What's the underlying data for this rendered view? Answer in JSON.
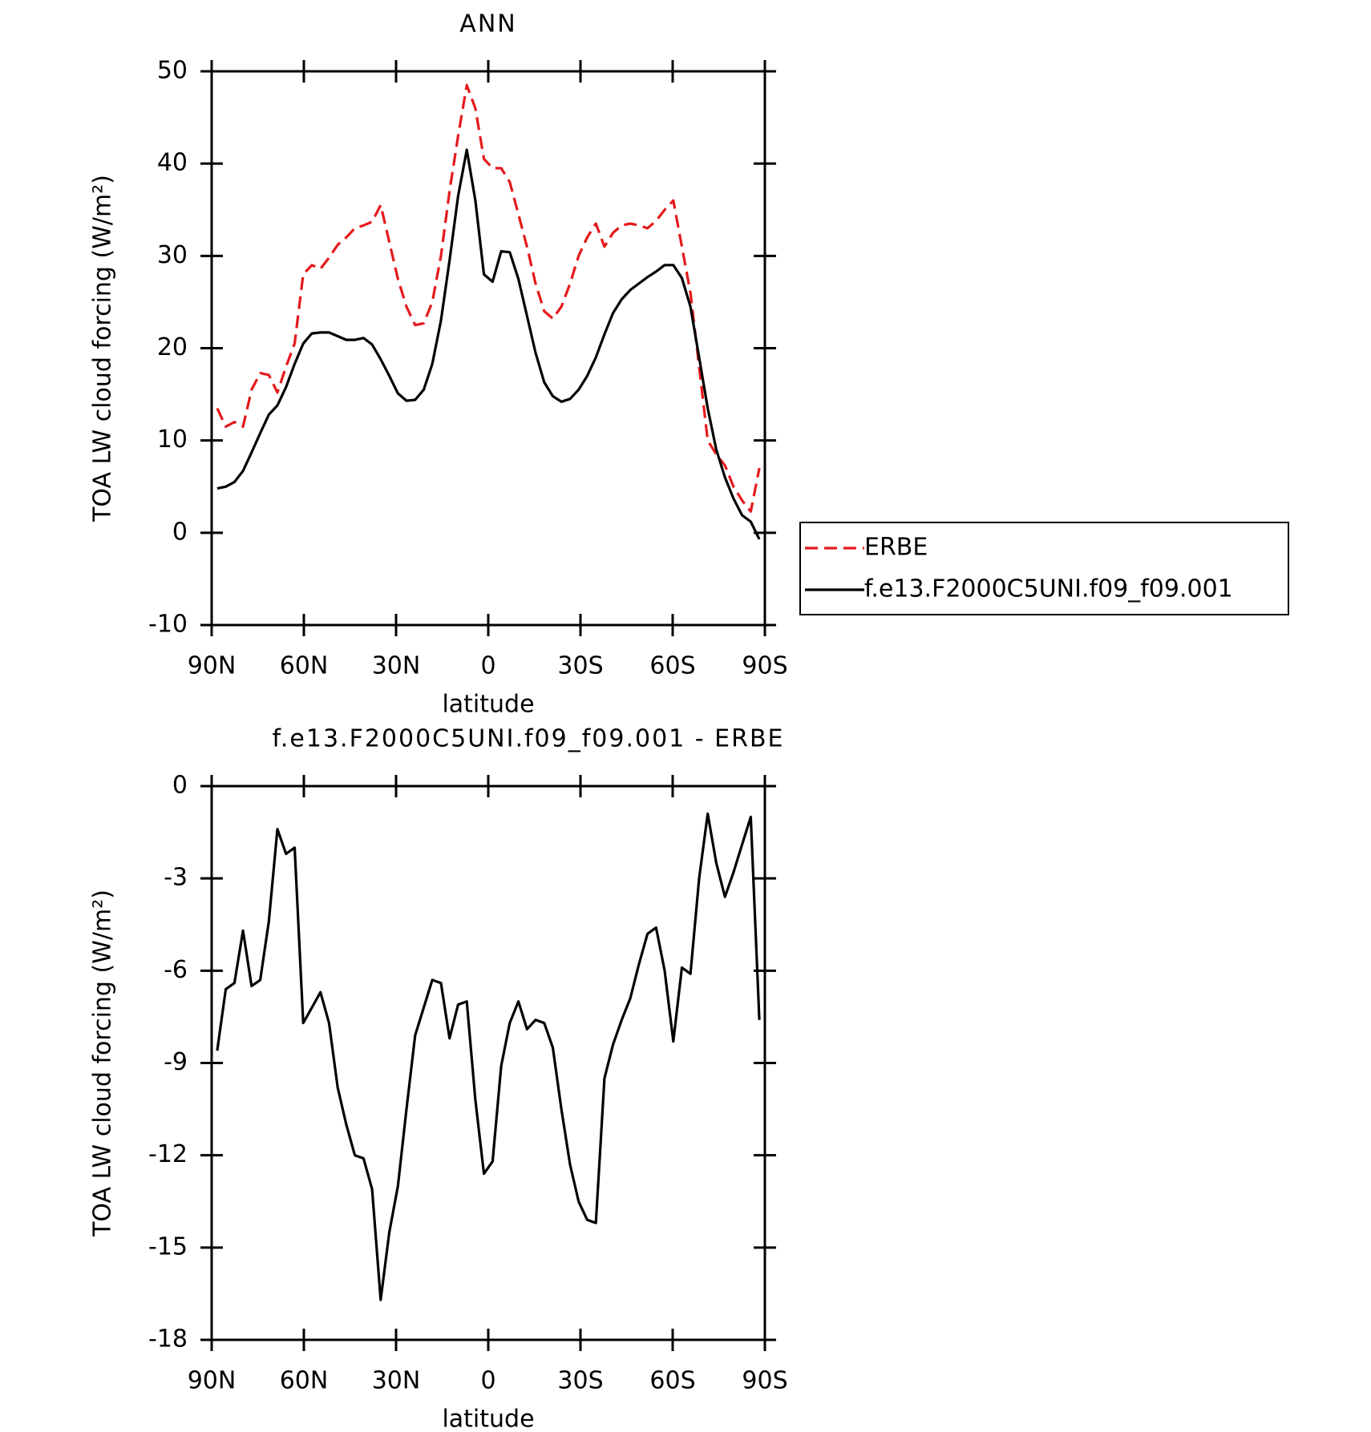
{
  "chart_data": [
    {
      "type": "line",
      "title": "ANN",
      "xlabel": "latitude",
      "ylabel": "TOA LW cloud forcing (W/m²)",
      "x": [
        88.2,
        85.4,
        82.6,
        79.8,
        77.0,
        74.2,
        71.4,
        68.6,
        65.8,
        63.0,
        60.2,
        57.4,
        54.6,
        51.8,
        49.0,
        46.2,
        43.4,
        40.6,
        37.8,
        35.0,
        32.2,
        29.4,
        26.6,
        23.8,
        21.0,
        18.2,
        15.4,
        12.6,
        9.8,
        7.0,
        4.2,
        1.4,
        -1.4,
        -4.2,
        -7.0,
        -9.8,
        -12.6,
        -15.4,
        -18.2,
        -21.0,
        -23.8,
        -26.6,
        -29.4,
        -32.2,
        -35.0,
        -37.8,
        -40.6,
        -43.4,
        -46.2,
        -49.0,
        -51.8,
        -54.6,
        -57.4,
        -60.2,
        -63.0,
        -65.8,
        -68.6,
        -71.4,
        -74.2,
        -77.0,
        -79.8,
        -82.6,
        -85.4,
        -88.2
      ],
      "series": [
        {
          "name": "ERBE",
          "color": "#e41a1c",
          "dash": "dashed",
          "values": [
            13.5,
            11.5,
            12,
            11.5,
            15.5,
            17.3,
            17.1,
            15.2,
            18,
            20.5,
            28,
            29,
            28.6,
            29.8,
            31.2,
            32,
            33,
            33.3,
            33.7,
            35.5,
            31.5,
            27.5,
            24.5,
            22.5,
            22.7,
            25,
            30,
            37,
            43,
            48.5,
            46,
            40.5,
            39.5,
            39.5,
            38,
            34.5,
            31,
            27,
            24,
            23.2,
            24.5,
            27,
            30,
            32,
            33.5,
            31,
            32.5,
            33.3,
            33.5,
            33.3,
            33,
            33.8,
            35,
            36,
            31,
            26,
            18,
            10,
            8.5,
            7.3,
            5,
            3.5,
            2.3,
            7
          ]
        },
        {
          "name": "f.e13.F2000C5UNI.f09_f09.001",
          "color": "#000000",
          "dash": "solid",
          "values": [
            4.8,
            5,
            5.5,
            6.7,
            8.7,
            10.8,
            12.8,
            13.8,
            15.8,
            18.3,
            20.5,
            21.6,
            21.7,
            21.7,
            21.3,
            20.9,
            20.9,
            21.1,
            20.4,
            18.8,
            17,
            15.1,
            14.3,
            14.4,
            15.5,
            18.3,
            23,
            29.5,
            36.5,
            41.5,
            36,
            28,
            27.2,
            30.5,
            30.4,
            27.5,
            23.5,
            19.5,
            16.3,
            14.8,
            14.2,
            14.5,
            15.5,
            17,
            19,
            21.5,
            23.8,
            25.3,
            26.3,
            27,
            27.7,
            28.3,
            29,
            29,
            27.6,
            24.5,
            19,
            13.5,
            9,
            6,
            3.7,
            1.9,
            1.2,
            -0.7
          ]
        }
      ],
      "xlim": [
        90,
        -90
      ],
      "xticks": [
        {
          "value": 90,
          "label": "90N"
        },
        {
          "value": 60,
          "label": "60N"
        },
        {
          "value": 30,
          "label": "30N"
        },
        0,
        {
          "value": -30,
          "label": "30S"
        },
        {
          "value": -60,
          "label": "60S"
        },
        {
          "value": -90,
          "label": "90S"
        }
      ],
      "ylim": [
        -10,
        50
      ],
      "yticks": [
        -10,
        0,
        10,
        20,
        30,
        40,
        50
      ],
      "legend": "right"
    },
    {
      "type": "line",
      "title": "f.e13.F2000C5UNI.f09_f09.001 - ERBE",
      "xlabel": "latitude",
      "ylabel": "TOA LW cloud forcing (W/m²)",
      "x": [
        88.2,
        85.4,
        82.6,
        79.8,
        77.0,
        74.2,
        71.4,
        68.6,
        65.8,
        63.0,
        60.2,
        57.4,
        54.6,
        51.8,
        49.0,
        46.2,
        43.4,
        40.6,
        37.8,
        35.0,
        32.2,
        29.4,
        26.6,
        23.8,
        21.0,
        18.2,
        15.4,
        12.6,
        9.8,
        7.0,
        4.2,
        1.4,
        -1.4,
        -4.2,
        -7.0,
        -9.8,
        -12.6,
        -15.4,
        -18.2,
        -21.0,
        -23.8,
        -26.6,
        -29.4,
        -32.2,
        -35.0,
        -37.8,
        -40.6,
        -43.4,
        -46.2,
        -49.0,
        -51.8,
        -54.6,
        -57.4,
        -60.2,
        -63.0,
        -65.8,
        -68.6,
        -71.4,
        -74.2,
        -77.0,
        -79.8,
        -82.6,
        -85.4,
        -88.2
      ],
      "series": [
        {
          "color": "#000000",
          "dash": "solid",
          "values": [
            -8.6,
            -6.6,
            -6.4,
            -4.7,
            -6.5,
            -6.3,
            -4.4,
            -1.4,
            -2.2,
            -2.0,
            -7.7,
            -7.2,
            -6.7,
            -7.7,
            -9.8,
            -11.0,
            -12.0,
            -12.1,
            -13.1,
            -16.7,
            -14.5,
            -13.0,
            -10.5,
            -8.1,
            -7.2,
            -6.3,
            -6.4,
            -8.2,
            -7.1,
            -7.0,
            -10.2,
            -12.6,
            -12.2,
            -9.1,
            -7.7,
            -7.0,
            -7.9,
            -7.6,
            -7.7,
            -8.5,
            -10.5,
            -12.3,
            -13.5,
            -14.1,
            -14.2,
            -9.5,
            -8.4,
            -7.6,
            -6.9,
            -5.8,
            -4.8,
            -4.6,
            -6.0,
            -8.3,
            -5.9,
            -6.1,
            -3.0,
            -0.9,
            -2.5,
            -3.6,
            -2.8,
            -1.9,
            -1.0,
            -7.6
          ]
        }
      ],
      "xlim": [
        90,
        -90
      ],
      "xticks": [
        {
          "value": 90,
          "label": "90N"
        },
        {
          "value": 60,
          "label": "60N"
        },
        {
          "value": 30,
          "label": "30N"
        },
        0,
        {
          "value": -30,
          "label": "30S"
        },
        {
          "value": -60,
          "label": "60S"
        },
        {
          "value": -90,
          "label": "90S"
        }
      ],
      "ylim": [
        -18,
        0
      ],
      "yticks": [
        -18,
        -15,
        -12,
        -9,
        -6,
        -3,
        0
      ]
    }
  ]
}
